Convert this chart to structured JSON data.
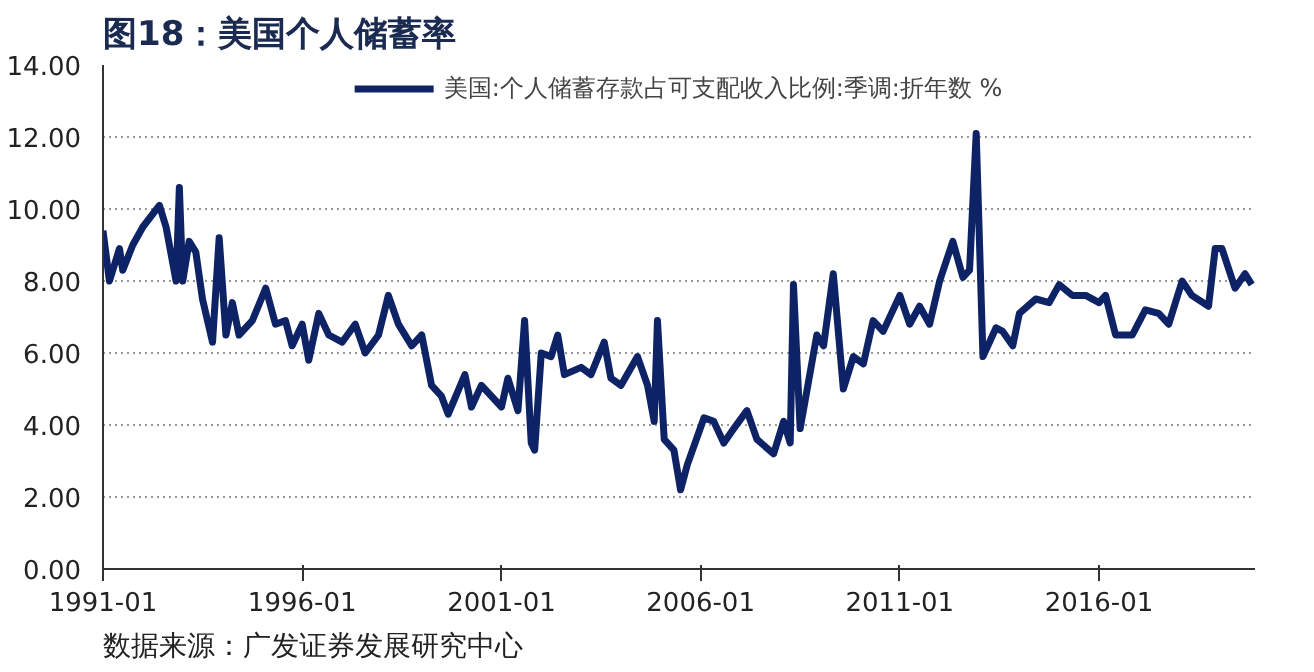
{
  "chart_data": {
    "type": "line",
    "title": "图18：美国个人储蓄率",
    "annotations": [
      "数据来源：广发证券发展研究中心"
    ],
    "x": [
      "1991-01",
      "1991-03",
      "1991-06",
      "1991-07",
      "1991-10",
      "1992-01",
      "1992-06",
      "1992-08",
      "1992-11",
      "1992-12",
      "1993-01",
      "1993-03",
      "1993-05",
      "1993-07",
      "1993-10",
      "1993-12",
      "1994-02",
      "1994-04",
      "1994-06",
      "1994-10",
      "1995-02",
      "1995-05",
      "1995-08",
      "1995-10",
      "1996-01",
      "1996-03",
      "1996-06",
      "1996-09",
      "1997-01",
      "1997-05",
      "1997-08",
      "1997-12",
      "1998-03",
      "1998-06",
      "1998-10",
      "1999-01",
      "1999-04",
      "1999-07",
      "1999-09",
      "2000-02",
      "2000-04",
      "2000-07",
      "2001-01",
      "2001-03",
      "2001-06",
      "2001-08",
      "2001-10",
      "2001-11",
      "2002-01",
      "2002-04",
      "2002-06",
      "2002-08",
      "2003-01",
      "2003-04",
      "2003-08",
      "2003-10",
      "2004-01",
      "2004-06",
      "2004-09",
      "2004-11",
      "2004-12",
      "2005-02",
      "2005-05",
      "2005-07",
      "2005-09",
      "2006-02",
      "2006-05",
      "2006-08",
      "2006-11",
      "2007-03",
      "2007-06",
      "2007-11",
      "2008-02",
      "2008-04",
      "2008-05",
      "2008-07",
      "2008-12",
      "2009-02",
      "2009-05",
      "2009-08",
      "2009-11",
      "2010-02",
      "2010-05",
      "2010-08",
      "2011-01",
      "2011-04",
      "2011-07",
      "2011-10",
      "2012-01",
      "2012-05",
      "2012-08",
      "2012-10",
      "2012-12",
      "2013-02",
      "2013-06",
      "2013-08",
      "2013-11",
      "2014-01",
      "2014-06",
      "2014-10",
      "2015-01",
      "2015-05",
      "2015-09",
      "2016-01",
      "2016-03",
      "2016-06",
      "2016-11",
      "2017-03",
      "2017-07",
      "2017-10",
      "2018-02",
      "2018-05",
      "2018-10",
      "2018-12",
      "2019-02",
      "2019-06",
      "2019-09",
      "2019-11"
    ],
    "series": [
      {
        "name": "美国:个人储蓄存款占可支配收入比例:季调:折年数 %",
        "color": "#0d2366",
        "values": [
          9.4,
          8.0,
          8.9,
          8.3,
          9.0,
          9.5,
          10.1,
          9.5,
          8.0,
          10.6,
          8.0,
          9.1,
          8.8,
          7.5,
          6.3,
          9.2,
          6.5,
          7.4,
          6.5,
          6.9,
          7.8,
          6.8,
          6.9,
          6.2,
          6.8,
          5.8,
          7.1,
          6.5,
          6.3,
          6.8,
          6.0,
          6.5,
          7.6,
          6.8,
          6.2,
          6.5,
          5.1,
          4.8,
          4.3,
          5.4,
          4.5,
          5.1,
          4.5,
          5.3,
          4.4,
          6.9,
          3.5,
          3.3,
          6.0,
          5.9,
          6.5,
          5.4,
          5.6,
          5.4,
          6.3,
          5.3,
          5.1,
          5.9,
          5.1,
          4.1,
          6.9,
          3.6,
          3.3,
          2.2,
          2.9,
          4.2,
          4.1,
          3.5,
          3.9,
          4.4,
          3.6,
          3.2,
          4.1,
          3.5,
          7.9,
          3.9,
          6.5,
          6.2,
          8.2,
          5.0,
          5.9,
          5.7,
          6.9,
          6.6,
          7.6,
          6.8,
          7.3,
          6.8,
          8.0,
          9.1,
          8.1,
          8.3,
          12.1,
          5.9,
          6.7,
          6.6,
          6.2,
          7.1,
          7.5,
          7.4,
          7.9,
          7.6,
          7.6,
          7.4,
          7.6,
          6.5,
          6.5,
          7.2,
          7.1,
          6.8,
          8.0,
          7.6,
          7.3,
          8.9,
          8.9,
          7.8,
          8.2,
          7.9
        ]
      }
    ],
    "xlim": [
      "1991-01",
      "2019-12"
    ],
    "xticks": [
      "1991-01",
      "1996-01",
      "2001-01",
      "2006-01",
      "2011-01",
      "2016-01"
    ],
    "ylim": [
      0,
      14
    ],
    "yticks": [
      {
        "value": 0,
        "label": "0.00"
      },
      {
        "value": 2,
        "label": "2.00"
      },
      {
        "value": 4,
        "label": "4.00"
      },
      {
        "value": 6,
        "label": "6.00"
      },
      {
        "value": 8,
        "label": "8.00"
      },
      {
        "value": 10,
        "label": "10.00"
      },
      {
        "value": 12,
        "label": "12.00"
      },
      {
        "value": 14,
        "label": "14.00"
      }
    ],
    "grid": "y",
    "legend": "top"
  }
}
